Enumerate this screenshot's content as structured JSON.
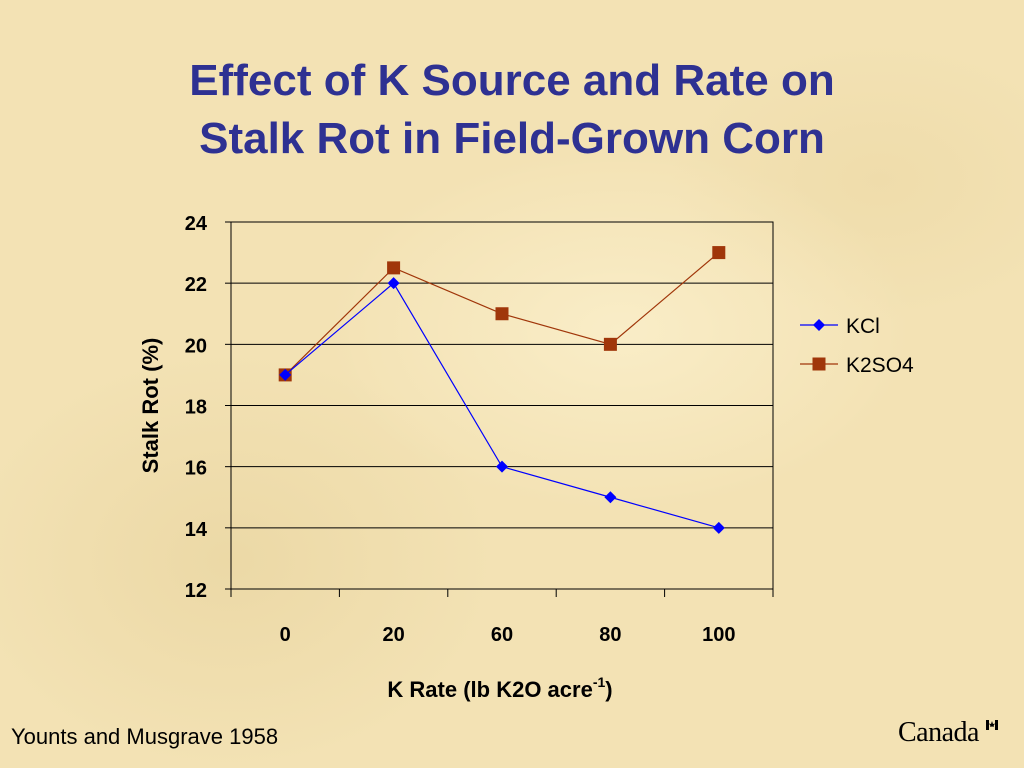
{
  "slide": {
    "title_line1": "Effect of K Source and Rate on",
    "title_line2": "Stalk Rot in Field-Grown Corn",
    "footer": "Younts and Musgrave 1958",
    "logo_text": "Canada"
  },
  "colors": {
    "title": "#2e3192",
    "kcl": "#0000ff",
    "k2so4_marker": "#a0360a",
    "k2so4_line": "#a0360a"
  },
  "chart_data": {
    "type": "line",
    "categories": [
      "0",
      "20",
      "60",
      "80",
      "100"
    ],
    "series": [
      {
        "name": "KCl",
        "values": [
          19,
          22,
          16,
          15,
          14
        ],
        "marker": "diamond"
      },
      {
        "name": "K2SO4",
        "values": [
          19,
          22.5,
          21,
          20,
          23
        ],
        "marker": "square"
      }
    ],
    "ylabel": "Stalk Rot (%)",
    "xlabel_main": "K Rate (lb K2O acre",
    "xlabel_sup": "-1",
    "xlabel_end": ")",
    "ylim": [
      12,
      24
    ],
    "yticks": [
      "12",
      "14",
      "16",
      "18",
      "20",
      "22",
      "24"
    ],
    "grid": true,
    "legend_position": "right"
  }
}
